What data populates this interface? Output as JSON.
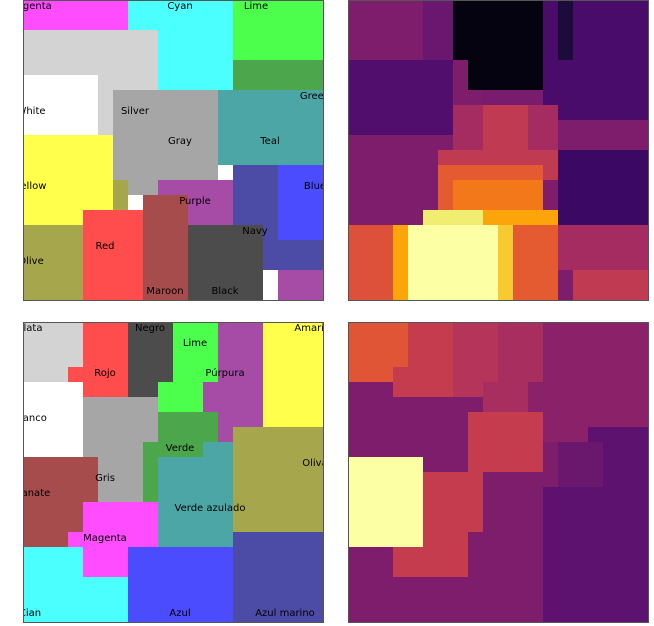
{
  "panels": [
    {
      "id": "english-map",
      "labels": [
        "Magenta",
        "Cyan",
        "Lime",
        "White",
        "Silver",
        "Green",
        "Gray",
        "Teal",
        "Yellow",
        "Blue",
        "Purple",
        "Red",
        "Navy",
        "Olive",
        "Maroon",
        "Black"
      ],
      "colors": {
        "Magenta": "#ff4cff",
        "Cyan": "#4cffff",
        "Lime": "#4cff4c",
        "White": "#ffffff",
        "Silver": "#d3d3d3",
        "Green": "#4ca64c",
        "Gray": "#a6a6a6",
        "Teal": "#4ca6a6",
        "Yellow": "#ffff4c",
        "Blue": "#4c4cff",
        "Purple": "#a64ca6",
        "Red": "#ff4c4c",
        "Navy": "#4c4ca6",
        "Olive": "#a6a64c",
        "Maroon": "#a64c4c",
        "Black": "#4c4c4c"
      }
    },
    {
      "id": "spanish-map",
      "labels": [
        "Plata",
        "Negro",
        "Amarillo",
        "Lime",
        "Rojo",
        "Púrpura",
        "Blanco",
        "Verde",
        "Oliva",
        "Gris",
        "Granate",
        "Verde azulado",
        "Magenta",
        "Cian",
        "Azul",
        "Azul marino"
      ],
      "colors": {
        "Plata": "#d3d3d3",
        "Negro": "#4c4c4c",
        "Amarillo": "#ffff4c",
        "Lime": "#4cff4c",
        "Rojo": "#ff4c4c",
        "Púrpura": "#a64ca6",
        "Blanco": "#ffffff",
        "Verde": "#4ca64c",
        "Oliva": "#a6a64c",
        "Gris": "#a6a6a6",
        "Granate": "#a64c4c",
        "Verde azulado": "#4ca6a6",
        "Magenta": "#ff4cff",
        "Cian": "#4cffff",
        "Azul": "#4c4cff",
        "Azul marino": "#4c4ca6"
      }
    }
  ]
}
